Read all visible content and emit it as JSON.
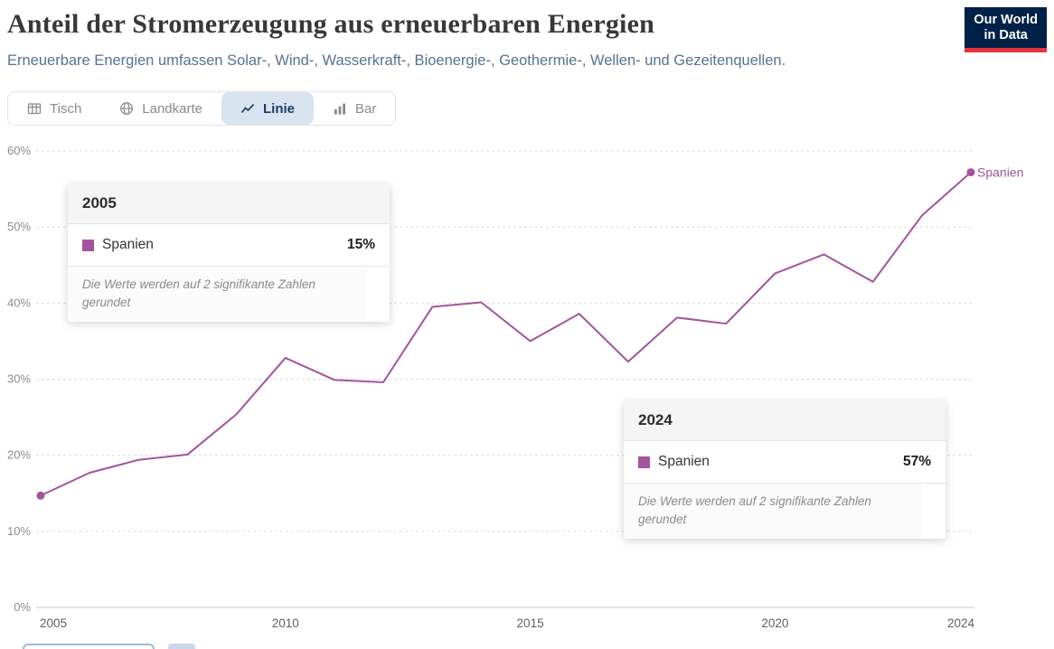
{
  "header": {
    "title": "Anteil der Stromerzeugung aus erneuerbaren Energien",
    "subtitle": "Erneuerbare Energien umfassen Solar-, Wind-, Wasserkraft-, Bioenergie-, Geothermie-, Wellen- und Gezeitenquellen.",
    "logo": {
      "line1": "Our World",
      "line2": "in Data"
    }
  },
  "tabs": [
    {
      "label": "Tisch",
      "icon": "table-icon",
      "active": false
    },
    {
      "label": "Landkarte",
      "icon": "globe-icon",
      "active": false
    },
    {
      "label": "Linie",
      "icon": "line-chart-icon",
      "active": true
    },
    {
      "label": "Bar",
      "icon": "bar-chart-icon",
      "active": false
    }
  ],
  "chart_data": {
    "type": "line",
    "title": "Anteil der Stromerzeugung aus erneuerbaren Energien",
    "x": [
      2005,
      2006,
      2007,
      2008,
      2009,
      2010,
      2011,
      2012,
      2013,
      2014,
      2015,
      2016,
      2017,
      2018,
      2019,
      2020,
      2021,
      2022,
      2023,
      2024
    ],
    "series": [
      {
        "name": "Spanien",
        "color": "#a2559c",
        "values": [
          14.7,
          17.7,
          19.4,
          20.1,
          25.4,
          32.8,
          29.9,
          29.6,
          39.5,
          40.1,
          35.0,
          38.6,
          32.3,
          38.1,
          37.3,
          43.9,
          46.4,
          42.8,
          51.5,
          57.2
        ]
      }
    ],
    "xlim": [
      2005,
      2024
    ],
    "ylim": [
      0,
      60
    ],
    "yticks": [
      0,
      10,
      20,
      30,
      40,
      50,
      60
    ],
    "ytick_labels": [
      "0%",
      "10%",
      "20%",
      "30%",
      "40%",
      "50%",
      "60%"
    ],
    "xticks": [
      2005,
      2010,
      2015,
      2020,
      2024
    ],
    "grid": "dashed-horizontal",
    "legend_position": "end-of-line",
    "end_label": "Spanien"
  },
  "tooltips": [
    {
      "year": "2005",
      "series": "Spanien",
      "value": "15%",
      "note": "Die Werte werden auf 2 signifikante Zahlen gerundet"
    },
    {
      "year": "2024",
      "series": "Spanien",
      "value": "57%",
      "note": "Die Werte werden auf 2 signifikante Zahlen gerundet"
    }
  ],
  "colors": {
    "series": "#a2559c",
    "active_tab_bg": "#d9e4f1",
    "active_tab_text": "#1d3d63",
    "logo_bg": "#002147",
    "logo_red": "#e5353e"
  }
}
